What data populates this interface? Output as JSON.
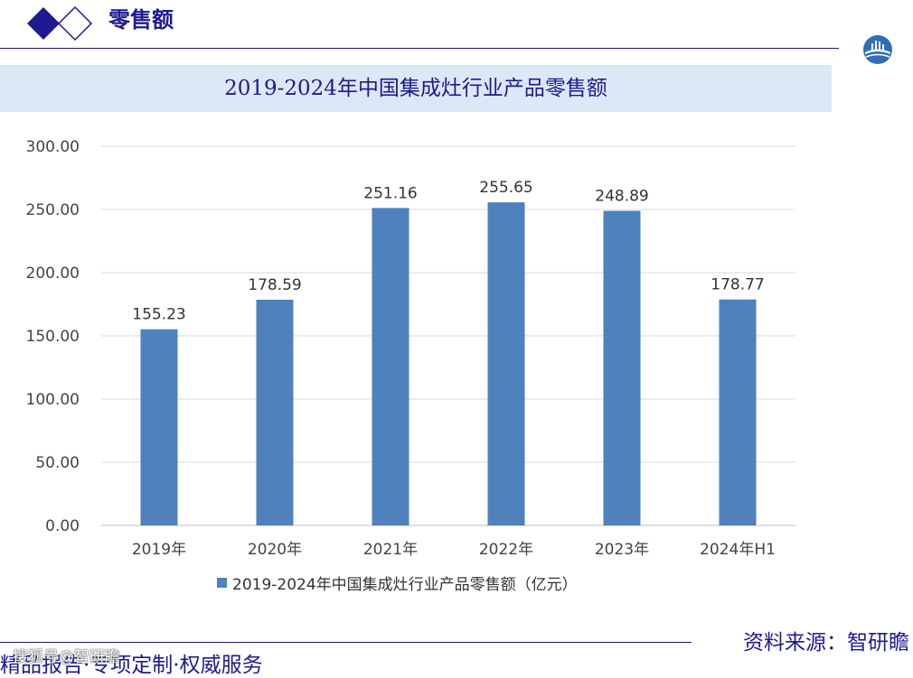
{
  "header": {
    "title": "零售额"
  },
  "banner": {
    "title": "2019-2024年中国集成灶行业产品零售额"
  },
  "chart_data": {
    "type": "bar",
    "categories": [
      "2019年",
      "2020年",
      "2021年",
      "2022年",
      "2023年",
      "2024年H1"
    ],
    "series": [
      {
        "name": "2019-2024年中国集成灶行业产品零售额（亿元）",
        "values": [
          155.23,
          178.59,
          251.16,
          255.65,
          248.89,
          178.77
        ]
      }
    ],
    "data_labels": [
      "155.23",
      "178.59",
      "251.16",
      "255.65",
      "248.89",
      "178.77"
    ],
    "y_ticks": [
      "0.00",
      "50.00",
      "100.00",
      "150.00",
      "200.00",
      "250.00",
      "300.00"
    ],
    "ylim": [
      0,
      300
    ],
    "grid": true,
    "legend_position": "bottom",
    "bar_color": "#4f81bd"
  },
  "footer": {
    "source": "资料来源：智研瞻",
    "slogan": "精品报告·专项定制·权威服务",
    "watermark": "搜狐号@智研瞻"
  },
  "colors": {
    "brand": "#1f1a8f",
    "banner_bg": "#dbe8f6",
    "bar": "#4f81bd"
  }
}
